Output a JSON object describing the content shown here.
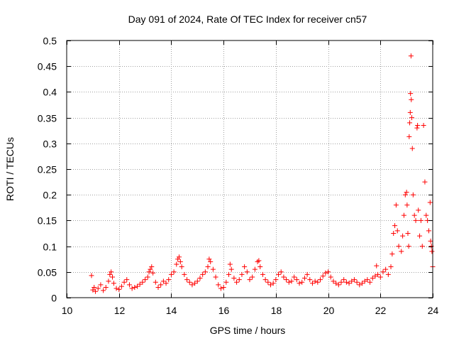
{
  "chart_data": {
    "type": "scatter",
    "title": "Day 091 of 2024, Rate Of TEC Index for receiver cn57",
    "xlabel": "GPS time / hours",
    "ylabel": "ROTI / TECUs",
    "xlim": [
      10,
      24
    ],
    "ylim": [
      0,
      0.5
    ],
    "x_ticks": [
      10,
      12,
      14,
      16,
      18,
      20,
      22,
      24
    ],
    "x_tick_labels": [
      "10",
      "12",
      "14",
      "16",
      "18",
      "20",
      "22",
      "24"
    ],
    "y_ticks": [
      0,
      0.05,
      0.1,
      0.15,
      0.2,
      0.25,
      0.3,
      0.35,
      0.4,
      0.45,
      0.5
    ],
    "y_tick_labels": [
      "0",
      "0.05",
      "0.1",
      "0.15",
      "0.2",
      "0.25",
      "0.3",
      "0.35",
      "0.4",
      "0.45",
      "0.5"
    ],
    "grid": true,
    "marker": "+",
    "color": "#ff0000",
    "series": [
      {
        "points": [
          [
            10.95,
            0.043
          ],
          [
            11.0,
            0.015
          ],
          [
            11.05,
            0.02
          ],
          [
            11.1,
            0.012
          ],
          [
            11.2,
            0.018
          ],
          [
            11.3,
            0.025
          ],
          [
            11.4,
            0.014
          ],
          [
            11.5,
            0.02
          ],
          [
            11.6,
            0.032
          ],
          [
            11.65,
            0.045
          ],
          [
            11.7,
            0.05
          ],
          [
            11.75,
            0.04
          ],
          [
            11.8,
            0.028
          ],
          [
            11.9,
            0.018
          ],
          [
            12.0,
            0.016
          ],
          [
            12.1,
            0.022
          ],
          [
            12.2,
            0.03
          ],
          [
            12.3,
            0.035
          ],
          [
            12.4,
            0.025
          ],
          [
            12.5,
            0.018
          ],
          [
            12.6,
            0.02
          ],
          [
            12.7,
            0.022
          ],
          [
            12.8,
            0.026
          ],
          [
            12.9,
            0.03
          ],
          [
            13.0,
            0.035
          ],
          [
            13.1,
            0.04
          ],
          [
            13.15,
            0.05
          ],
          [
            13.2,
            0.055
          ],
          [
            13.25,
            0.06
          ],
          [
            13.3,
            0.048
          ],
          [
            13.4,
            0.03
          ],
          [
            13.5,
            0.02
          ],
          [
            13.6,
            0.025
          ],
          [
            13.7,
            0.032
          ],
          [
            13.8,
            0.028
          ],
          [
            13.9,
            0.035
          ],
          [
            14.0,
            0.045
          ],
          [
            14.1,
            0.05
          ],
          [
            14.2,
            0.065
          ],
          [
            14.25,
            0.075
          ],
          [
            14.3,
            0.079
          ],
          [
            14.35,
            0.07
          ],
          [
            14.4,
            0.06
          ],
          [
            14.5,
            0.045
          ],
          [
            14.6,
            0.035
          ],
          [
            14.7,
            0.03
          ],
          [
            14.8,
            0.025
          ],
          [
            14.9,
            0.028
          ],
          [
            15.0,
            0.032
          ],
          [
            15.1,
            0.038
          ],
          [
            15.2,
            0.045
          ],
          [
            15.3,
            0.05
          ],
          [
            15.4,
            0.06
          ],
          [
            15.45,
            0.075
          ],
          [
            15.5,
            0.07
          ],
          [
            15.6,
            0.055
          ],
          [
            15.7,
            0.04
          ],
          [
            15.8,
            0.025
          ],
          [
            15.9,
            0.018
          ],
          [
            16.0,
            0.02
          ],
          [
            16.1,
            0.03
          ],
          [
            16.2,
            0.045
          ],
          [
            16.25,
            0.065
          ],
          [
            16.3,
            0.055
          ],
          [
            16.4,
            0.038
          ],
          [
            16.5,
            0.03
          ],
          [
            16.6,
            0.035
          ],
          [
            16.7,
            0.045
          ],
          [
            16.8,
            0.06
          ],
          [
            16.9,
            0.05
          ],
          [
            17.0,
            0.035
          ],
          [
            17.1,
            0.04
          ],
          [
            17.2,
            0.055
          ],
          [
            17.3,
            0.07
          ],
          [
            17.35,
            0.072
          ],
          [
            17.4,
            0.06
          ],
          [
            17.5,
            0.045
          ],
          [
            17.6,
            0.035
          ],
          [
            17.7,
            0.03
          ],
          [
            17.8,
            0.025
          ],
          [
            17.9,
            0.028
          ],
          [
            18.0,
            0.035
          ],
          [
            18.1,
            0.045
          ],
          [
            18.2,
            0.05
          ],
          [
            18.3,
            0.04
          ],
          [
            18.4,
            0.035
          ],
          [
            18.5,
            0.03
          ],
          [
            18.6,
            0.032
          ],
          [
            18.7,
            0.04
          ],
          [
            18.8,
            0.035
          ],
          [
            18.9,
            0.028
          ],
          [
            19.0,
            0.03
          ],
          [
            19.1,
            0.038
          ],
          [
            19.2,
            0.045
          ],
          [
            19.3,
            0.035
          ],
          [
            19.4,
            0.028
          ],
          [
            19.5,
            0.032
          ],
          [
            19.6,
            0.03
          ],
          [
            19.7,
            0.035
          ],
          [
            19.8,
            0.042
          ],
          [
            19.9,
            0.048
          ],
          [
            20.0,
            0.05
          ],
          [
            20.1,
            0.04
          ],
          [
            20.2,
            0.032
          ],
          [
            20.3,
            0.028
          ],
          [
            20.4,
            0.025
          ],
          [
            20.5,
            0.03
          ],
          [
            20.6,
            0.035
          ],
          [
            20.7,
            0.03
          ],
          [
            20.8,
            0.028
          ],
          [
            20.9,
            0.032
          ],
          [
            21.0,
            0.035
          ],
          [
            21.1,
            0.03
          ],
          [
            21.2,
            0.025
          ],
          [
            21.3,
            0.028
          ],
          [
            21.4,
            0.032
          ],
          [
            21.5,
            0.035
          ],
          [
            21.6,
            0.03
          ],
          [
            21.7,
            0.038
          ],
          [
            21.8,
            0.042
          ],
          [
            21.85,
            0.062
          ],
          [
            21.9,
            0.045
          ],
          [
            22.0,
            0.04
          ],
          [
            22.1,
            0.05
          ],
          [
            22.2,
            0.055
          ],
          [
            22.3,
            0.045
          ],
          [
            22.4,
            0.06
          ],
          [
            22.45,
            0.085
          ],
          [
            22.5,
            0.125
          ],
          [
            22.55,
            0.14
          ],
          [
            22.6,
            0.18
          ],
          [
            22.65,
            0.13
          ],
          [
            22.7,
            0.1
          ],
          [
            22.8,
            0.09
          ],
          [
            22.85,
            0.12
          ],
          [
            22.9,
            0.16
          ],
          [
            22.95,
            0.2
          ],
          [
            23.0,
            0.205
          ],
          [
            23.02,
            0.18
          ],
          [
            23.05,
            0.125
          ],
          [
            23.08,
            0.1
          ],
          [
            23.1,
            0.313
          ],
          [
            23.12,
            0.34
          ],
          [
            23.14,
            0.36
          ],
          [
            23.15,
            0.397
          ],
          [
            23.17,
            0.47
          ],
          [
            23.18,
            0.385
          ],
          [
            23.2,
            0.35
          ],
          [
            23.22,
            0.29
          ],
          [
            23.25,
            0.2
          ],
          [
            23.3,
            0.16
          ],
          [
            23.35,
            0.15
          ],
          [
            23.4,
            0.33
          ],
          [
            23.42,
            0.335
          ],
          [
            23.45,
            0.17
          ],
          [
            23.5,
            0.12
          ],
          [
            23.55,
            0.15
          ],
          [
            23.6,
            0.1
          ],
          [
            23.65,
            0.335
          ],
          [
            23.7,
            0.225
          ],
          [
            23.75,
            0.16
          ],
          [
            23.8,
            0.15
          ],
          [
            23.85,
            0.13
          ],
          [
            23.9,
            0.185
          ],
          [
            23.92,
            0.11
          ],
          [
            23.95,
            0.1
          ],
          [
            23.97,
            0.09
          ],
          [
            24.0,
            0.06
          ]
        ]
      }
    ]
  }
}
